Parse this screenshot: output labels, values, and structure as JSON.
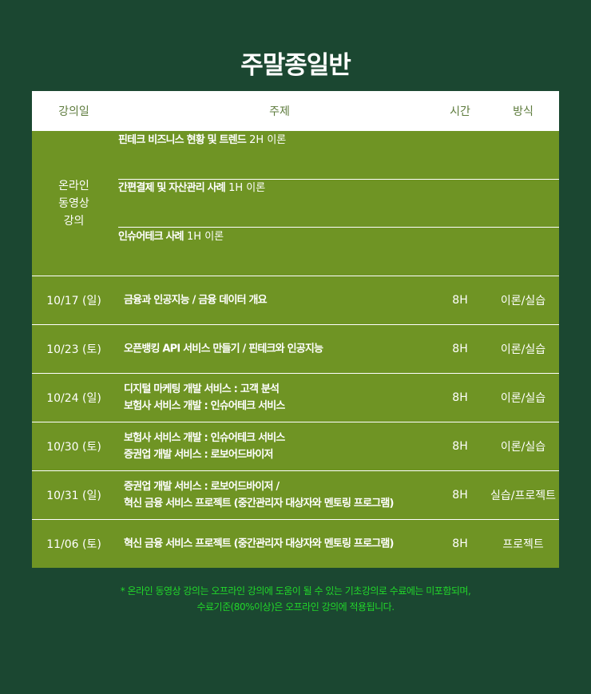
{
  "title": "주말종일반",
  "headers": {
    "date": "강의일",
    "topic": "주제",
    "hours": "시간",
    "method": "방식"
  },
  "online": {
    "label_lines": [
      "온라인",
      "동영상",
      "강의"
    ],
    "items": [
      {
        "topic": "핀테크 비즈니스 현황 및 트렌드",
        "hours": "2H",
        "method": "이론"
      },
      {
        "topic": "간편결제 및 자산관리 사례",
        "hours": "1H",
        "method": "이론"
      },
      {
        "topic": "인슈어테크 사례",
        "hours": "1H",
        "method": "이론"
      }
    ]
  },
  "rows": [
    {
      "date": "10/17 (일)",
      "topic": [
        "금융과 인공지능 / 금융 데이터 개요"
      ],
      "hours": "8H",
      "method": "이론/실습"
    },
    {
      "date": "10/23 (토)",
      "topic": [
        "오픈뱅킹 API 서비스 만들기 / 핀테크와 인공지능"
      ],
      "hours": "8H",
      "method": "이론/실습"
    },
    {
      "date": "10/24 (일)",
      "topic": [
        "디지털 마케팅 개발 서비스 : 고객 분석",
        "보험사 서비스 개발 :  인슈어테크 서비스"
      ],
      "hours": "8H",
      "method": "이론/실습"
    },
    {
      "date": "10/30 (토)",
      "topic": [
        "보험사 서비스 개발 :  인슈어테크 서비스",
        "증권업 개발 서비스 : 로보어드바이저"
      ],
      "hours": "8H",
      "method": "이론/실습"
    },
    {
      "date": "10/31 (일)",
      "topic": [
        "증권업 개발 서비스 : 로보어드바이저 /",
        "혁신 금융 서비스 프로젝트 (중간관리자 대상자와 멘토링 프로그램)"
      ],
      "hours": "8H",
      "method": "실습/프로젝트"
    },
    {
      "date": "11/06 (토)",
      "topic": [
        "혁신 금융 서비스 프로젝트 (중간관리자 대상자와 멘토링 프로그램)"
      ],
      "hours": "8H",
      "method": "프로젝트"
    }
  ],
  "note": [
    "* 온라인 동영상 강의는 오프라인 강의에 도움이 될 수 있는 기초강의로 수료에는 미포함되며,",
    "수료기준(80%이상)은 오프라인 강의에 적용됩니다."
  ],
  "colors": {
    "background": "#1b4731",
    "table": "#6f9424",
    "note": "#22d62a"
  }
}
